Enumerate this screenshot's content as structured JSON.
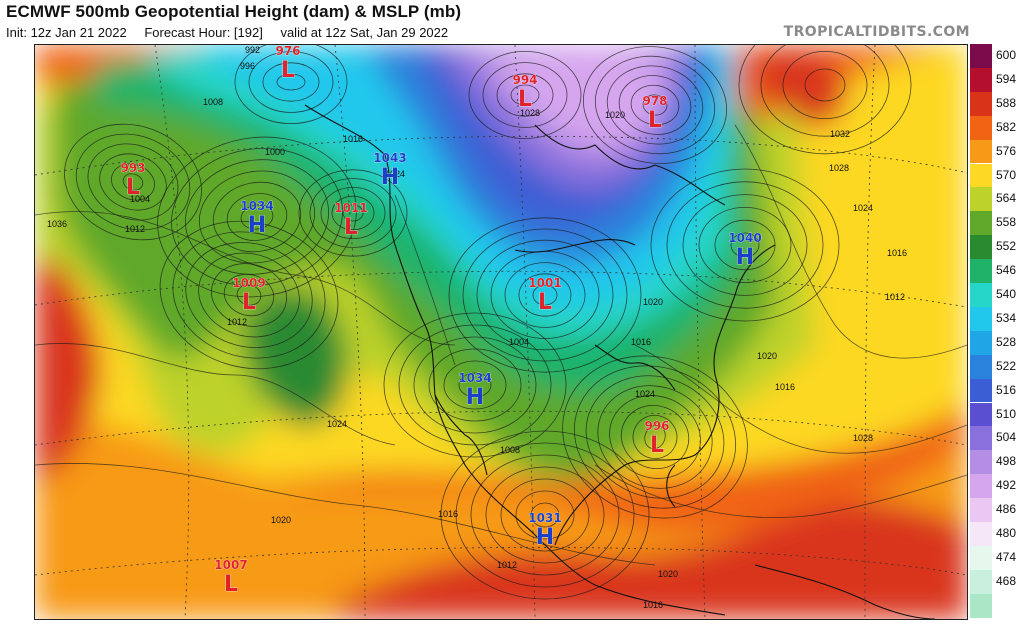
{
  "header": {
    "title": "ECMWF 500mb Geopotential Height (dam) & MSLP (mb)",
    "init": "Init: 12z Jan 21 2022",
    "forecast_hour": "Forecast Hour: [192]",
    "valid": "valid at 12z Sat, Jan 29 2022"
  },
  "brand": "TROPICALTIDBITS.COM",
  "legend": {
    "levels": [
      {
        "value": "600",
        "color": "#7a0a4a"
      },
      {
        "value": "594",
        "color": "#b4102e"
      },
      {
        "value": "588",
        "color": "#d9341a"
      },
      {
        "value": "582",
        "color": "#f06414"
      },
      {
        "value": "576",
        "color": "#f79a18"
      },
      {
        "value": "570",
        "color": "#fdd824"
      },
      {
        "value": "564",
        "color": "#bdd22a"
      },
      {
        "value": "558",
        "color": "#5fa829"
      },
      {
        "value": "552",
        "color": "#2a8a30"
      },
      {
        "value": "546",
        "color": "#1fb36a"
      },
      {
        "value": "540",
        "color": "#26d6c8"
      },
      {
        "value": "534",
        "color": "#22c8ec"
      },
      {
        "value": "528",
        "color": "#1ea6e6"
      },
      {
        "value": "522",
        "color": "#2a82dc"
      },
      {
        "value": "516",
        "color": "#3c5ed4"
      },
      {
        "value": "510",
        "color": "#5a4fd0"
      },
      {
        "value": "504",
        "color": "#8a70dc"
      },
      {
        "value": "498",
        "color": "#b48ee4"
      },
      {
        "value": "492",
        "color": "#d5a5ee"
      },
      {
        "value": "486",
        "color": "#ebc8f4"
      },
      {
        "value": "480",
        "color": "#f5e6f8"
      },
      {
        "value": "474",
        "color": "#e6f7ee"
      },
      {
        "value": "468",
        "color": "#c8f0dc"
      },
      {
        "value": "",
        "color": "#a9e7c6"
      }
    ]
  },
  "systems": [
    {
      "type": "L",
      "pressure": "976",
      "color": "#e0222a"
    },
    {
      "type": "L",
      "pressure": "994",
      "color": "#e0222a"
    },
    {
      "type": "L",
      "pressure": "978",
      "color": "#e0222a"
    },
    {
      "type": "L",
      "pressure": "993",
      "color": "#e0222a"
    },
    {
      "type": "H",
      "pressure": "1034",
      "color": "#1a3fc8"
    },
    {
      "type": "H",
      "pressure": "1043",
      "color": "#1a3fc8"
    },
    {
      "type": "L",
      "pressure": "1011",
      "color": "#e0222a"
    },
    {
      "type": "L",
      "pressure": "1009",
      "color": "#e0222a"
    },
    {
      "type": "H",
      "pressure": "1040",
      "color": "#1a3fc8"
    },
    {
      "type": "L",
      "pressure": "1001",
      "color": "#e0222a"
    },
    {
      "type": "H",
      "pressure": "1034",
      "color": "#1a3fc8"
    },
    {
      "type": "L",
      "pressure": "996",
      "color": "#e0222a"
    },
    {
      "type": "H",
      "pressure": "1031",
      "color": "#1a3fc8"
    },
    {
      "type": "L",
      "pressure": "1007",
      "color": "#e0222a"
    }
  ],
  "isobar_labels": [
    "992",
    "996",
    "1008",
    "1000",
    "1004",
    "1012",
    "1016",
    "1024",
    "1028",
    "1020",
    "1036",
    "1032",
    "1028",
    "1024",
    "1016",
    "1012",
    "1020",
    "1016",
    "1028",
    "1024",
    "1020",
    "1016",
    "1012",
    "1024",
    "1020",
    "1016",
    "1012",
    "1020",
    "1016",
    "1008",
    "1004"
  ]
}
